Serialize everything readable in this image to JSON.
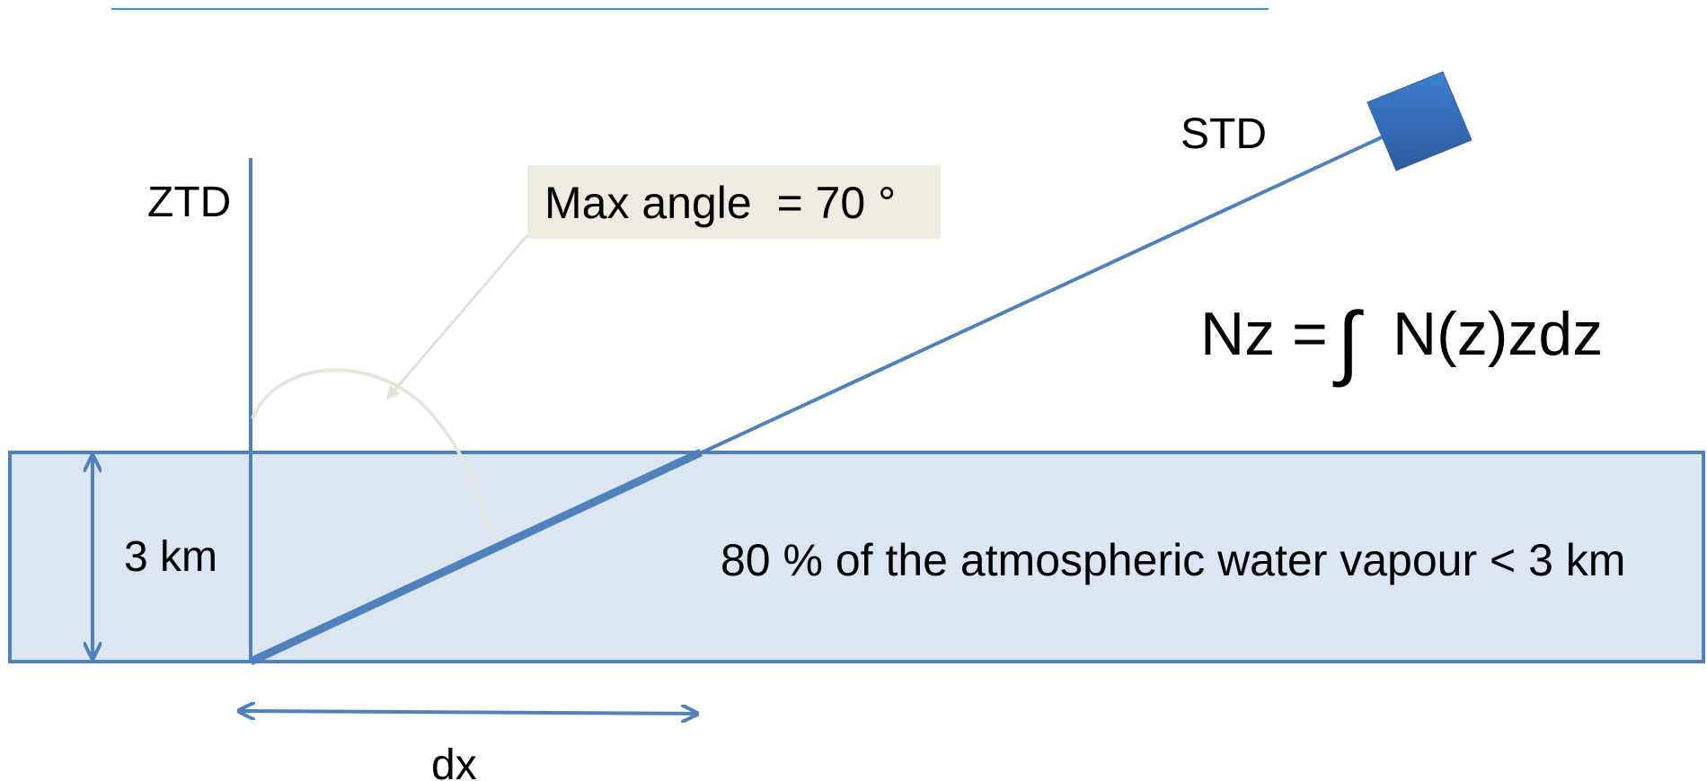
{
  "labels": {
    "ztd": "ZTD",
    "std": "STD",
    "max_angle": "Max angle  = 70 °",
    "height": "3 km",
    "dx": "dx",
    "layer_note": "80 % of the atmospheric water vapour < 3 km",
    "formula_lhs": "Nz =",
    "formula_integral": "∫",
    "formula_rhs": "N(z)zdz"
  },
  "colors": {
    "line_blue": "#4f81bd",
    "layer_fill": "#dce6f2",
    "callout_fill": "#eeece1",
    "arc_color": "#eeece1",
    "satellite_top": "#3f7fd1",
    "satellite_bottom": "#2b5a9e",
    "rule_line": "#2e9bd6",
    "text": "#000000"
  },
  "icons": {
    "satellite": "satellite-square-icon"
  }
}
